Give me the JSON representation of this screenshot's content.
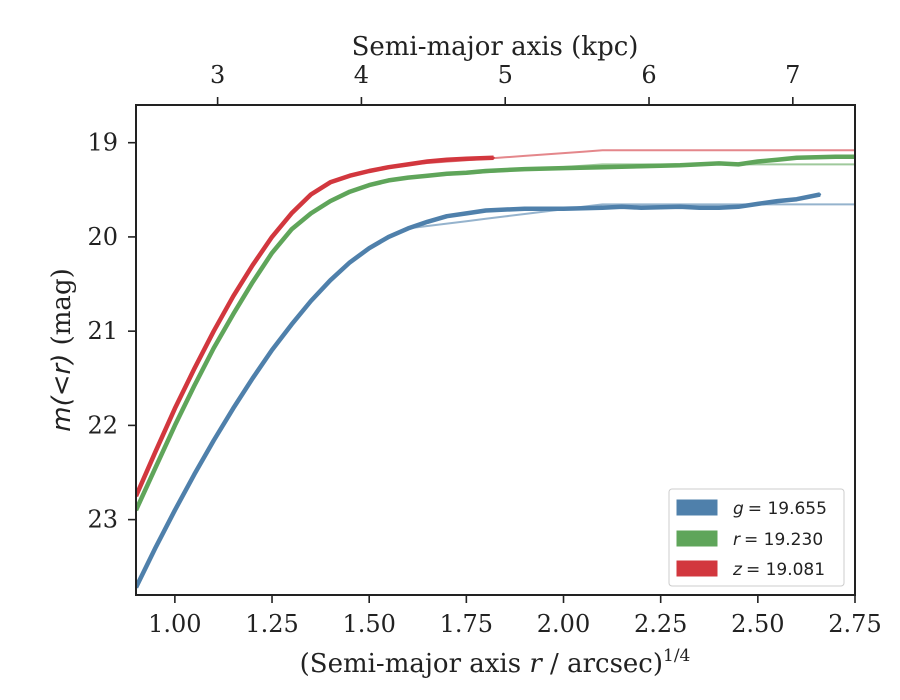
{
  "chart_data": {
    "type": "line",
    "xlabel": "(Semi-major axis r / arcsec)",
    "xlabel_var": "r",
    "xlabel_pre": "(Semi-major axis ",
    "xlabel_post": " / arcsec)",
    "xlabel_sup": "1/4",
    "ylabel_pre": "m(<r)",
    "ylabel_post": " (mag)",
    "top_xlabel": "Semi-major axis (kpc)",
    "xlim": [
      0.9,
      2.75
    ],
    "ylim": [
      23.8,
      18.6
    ],
    "y_inverted": true,
    "xticks": [
      1.0,
      1.25,
      1.5,
      1.75,
      2.0,
      2.25,
      2.5,
      2.75
    ],
    "xtick_labels": [
      "1.00",
      "1.25",
      "1.50",
      "1.75",
      "2.00",
      "2.25",
      "2.50",
      "2.75"
    ],
    "yticks": [
      19,
      20,
      21,
      22,
      23
    ],
    "ytick_labels": [
      "19",
      "20",
      "21",
      "22",
      "23"
    ],
    "top_xticks": [
      3,
      4,
      5,
      6,
      7
    ],
    "top_xtick_labels": [
      "3",
      "4",
      "5",
      "6",
      "7"
    ],
    "top_xtick_positions": [
      1.11,
      1.48,
      1.85,
      2.22,
      2.59
    ],
    "legend_position": "lower-right",
    "series": [
      {
        "name": "g = 19.655",
        "legend_var": "g",
        "legend_value": "= 19.655",
        "color": "#4f80ab",
        "model_value": 19.655,
        "x": [
          0.9,
          0.95,
          1.0,
          1.05,
          1.1,
          1.15,
          1.2,
          1.25,
          1.3,
          1.35,
          1.4,
          1.45,
          1.5,
          1.55,
          1.6,
          1.65,
          1.7,
          1.75,
          1.8,
          1.9,
          2.0,
          2.1,
          2.15,
          2.2,
          2.3,
          2.35,
          2.4,
          2.45,
          2.5,
          2.55,
          2.6,
          2.66
        ],
        "y": [
          23.72,
          23.3,
          22.9,
          22.52,
          22.16,
          21.82,
          21.5,
          21.2,
          20.93,
          20.68,
          20.46,
          20.27,
          20.12,
          20.0,
          19.91,
          19.84,
          19.78,
          19.75,
          19.72,
          19.7,
          19.7,
          19.69,
          19.68,
          19.69,
          19.68,
          19.69,
          19.69,
          19.68,
          19.65,
          19.62,
          19.6,
          19.55
        ]
      },
      {
        "name": "r = 19.230",
        "legend_var": "r",
        "legend_value": "= 19.230",
        "color": "#5fa55a",
        "model_value": 19.23,
        "x": [
          0.9,
          0.95,
          1.0,
          1.05,
          1.1,
          1.15,
          1.2,
          1.25,
          1.3,
          1.35,
          1.4,
          1.45,
          1.5,
          1.55,
          1.6,
          1.65,
          1.7,
          1.75,
          1.8,
          1.9,
          2.0,
          2.1,
          2.2,
          2.3,
          2.4,
          2.45,
          2.5,
          2.55,
          2.6,
          2.7,
          2.75
        ],
        "y": [
          22.9,
          22.45,
          22.0,
          21.58,
          21.18,
          20.82,
          20.48,
          20.17,
          19.92,
          19.75,
          19.62,
          19.52,
          19.45,
          19.4,
          19.37,
          19.35,
          19.33,
          19.32,
          19.3,
          19.28,
          19.27,
          19.26,
          19.25,
          19.24,
          19.22,
          19.23,
          19.2,
          19.18,
          19.16,
          19.15,
          19.15
        ]
      },
      {
        "name": "z = 19.081",
        "legend_var": "z",
        "legend_value": "= 19.081",
        "color": "#d2373e",
        "model_value": 19.081,
        "x": [
          0.9,
          0.95,
          1.0,
          1.05,
          1.1,
          1.15,
          1.2,
          1.25,
          1.3,
          1.35,
          1.4,
          1.45,
          1.5,
          1.55,
          1.6,
          1.65,
          1.7,
          1.75,
          1.82
        ],
        "y": [
          22.75,
          22.28,
          21.82,
          21.4,
          21.0,
          20.63,
          20.3,
          20.0,
          19.75,
          19.55,
          19.42,
          19.35,
          19.3,
          19.26,
          19.23,
          19.2,
          19.18,
          19.17,
          19.16
        ]
      }
    ]
  }
}
